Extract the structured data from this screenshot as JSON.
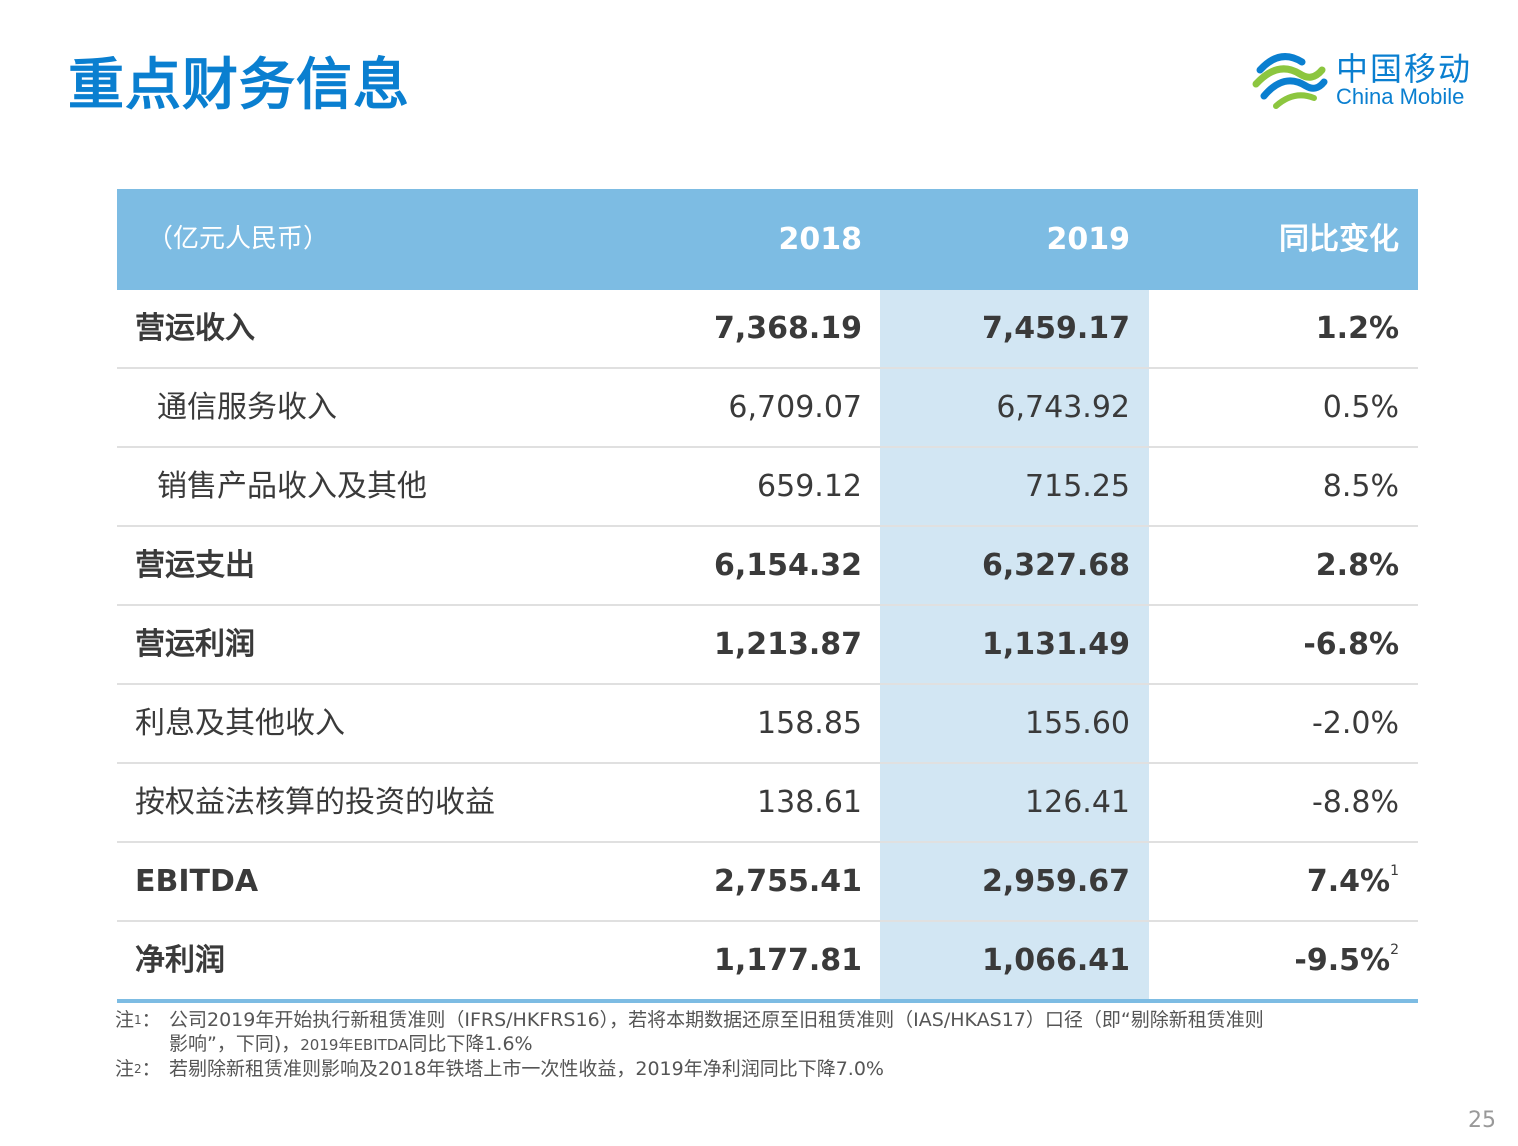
{
  "title": "重点财务信息",
  "logo": {
    "cn": "中国移动",
    "en": "China Mobile"
  },
  "table": {
    "headers": {
      "unit": "（亿元人民币）",
      "y2018": "2018",
      "y2019": "2019",
      "yoy": "同比变化"
    },
    "rows": [
      {
        "label": "营运收入",
        "v2018": "7,368.19",
        "v2019": "7,459.17",
        "yoy": "1.2%",
        "sup": ""
      },
      {
        "label": "通信服务收入",
        "v2018": "6,709.07",
        "v2019": "6,743.92",
        "yoy": "0.5%",
        "sup": ""
      },
      {
        "label": "销售产品收入及其他",
        "v2018": "659.12",
        "v2019": "715.25",
        "yoy": "8.5%",
        "sup": ""
      },
      {
        "label": "营运支出",
        "v2018": "6,154.32",
        "v2019": "6,327.68",
        "yoy": "2.8%",
        "sup": ""
      },
      {
        "label": "营运利润",
        "v2018": "1,213.87",
        "v2019": "1,131.49",
        "yoy": "-6.8%",
        "sup": ""
      },
      {
        "label": "利息及其他收入",
        "v2018": "158.85",
        "v2019": "155.60",
        "yoy": "-2.0%",
        "sup": ""
      },
      {
        "label": "按权益法核算的投资的收益",
        "v2018": "138.61",
        "v2019": "126.41",
        "yoy": "-8.8%",
        "sup": ""
      },
      {
        "label": "EBITDA",
        "v2018": "2,755.41",
        "v2019": "2,959.67",
        "yoy": "7.4%",
        "sup": "1"
      },
      {
        "label": "净利润",
        "v2018": "1,177.81",
        "v2019": "1,066.41",
        "yoy": "-9.5%",
        "sup": "2"
      }
    ]
  },
  "notes": {
    "n1_label": "注",
    "n1_sup": "1",
    "n1_colon": "：",
    "n1_line1": "公司2019年开始执行新租赁准则（IFRS/HKFRS16），若将本期数据还原至旧租赁准则（IAS/HKAS17）口径（即“剔除新租赁准则",
    "n1_line2a": "影响”，下同)，",
    "n1_line2b": "2019年EBITDA",
    "n1_line2c": "同比下降1.6%",
    "n2_label": "注",
    "n2_sup": "2",
    "n2_colon": "：",
    "n2_text": "若剔除新租赁准则影响及2018年铁塔上市一次性收益，2019年净利润同比下降7.0%"
  },
  "page_number": "25",
  "colors": {
    "title": "#0a7fd0",
    "header_bg": "#7dbce3",
    "highlight_col": "#d2e6f3",
    "logo_green": "#8cc63f"
  },
  "icons": {
    "logo": "china-mobile-logo-icon"
  }
}
